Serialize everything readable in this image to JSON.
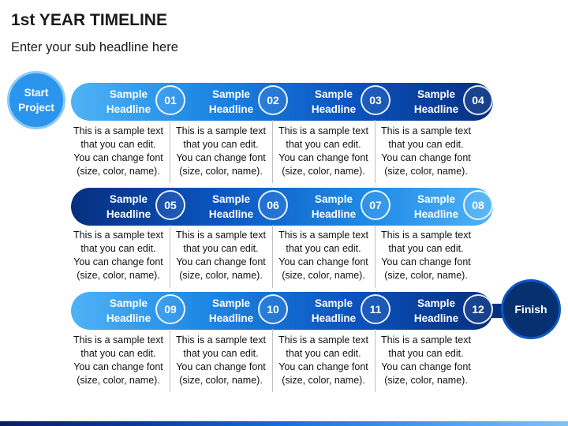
{
  "title": "1st YEAR TIMELINE",
  "subtitle": "Enter your sub headline here",
  "start_label": "Start\nProject",
  "finish_label": "Finish",
  "steps": [
    {
      "label": "Sample\nHeadline",
      "num": "01",
      "desc": "This is a sample text\nthat you can edit.\nYou can change font\n(size, color, name)."
    },
    {
      "label": "Sample\nHeadline",
      "num": "02",
      "desc": "This is a sample text\nthat you can edit.\nYou can change font\n(size, color, name)."
    },
    {
      "label": "Sample\nHeadline",
      "num": "03",
      "desc": "This is a sample text\nthat you can edit.\nYou can change font\n(size, color, name)."
    },
    {
      "label": "Sample\nHeadline",
      "num": "04",
      "desc": "This is a sample text\nthat you can edit.\nYou can change font\n(size, color, name)."
    },
    {
      "label": "Sample\nHeadline",
      "num": "05",
      "desc": "This is a sample text\nthat you can edit.\nYou can change font\n(size, color, name)."
    },
    {
      "label": "Sample\nHeadline",
      "num": "06",
      "desc": "This is a sample text\nthat you can edit.\nYou can change font\n(size, color, name)."
    },
    {
      "label": "Sample\nHeadline",
      "num": "07",
      "desc": "This is a sample text\nthat you can edit.\nYou can change font\n(size, color, name)."
    },
    {
      "label": "Sample\nHeadline",
      "num": "08",
      "desc": "This is a sample text\nthat you can edit.\nYou can change font\n(size, color, name)."
    },
    {
      "label": "Sample\nHeadline",
      "num": "09",
      "desc": "This is a sample text\nthat you can edit.\nYou can change font\n(size, color, name)."
    },
    {
      "label": "Sample\nHeadline",
      "num": "10",
      "desc": "This is a sample text\nthat you can edit.\nYou can change font\n(size, color, name)."
    },
    {
      "label": "Sample\nHeadline",
      "num": "11",
      "desc": "This is a sample text\nthat you can edit.\nYou can change font\n(size, color, name)."
    },
    {
      "label": "Sample\nHeadline",
      "num": "12",
      "desc": "This is a sample text\nthat you can edit.\nYou can change font\n(size, color, name)."
    }
  ]
}
